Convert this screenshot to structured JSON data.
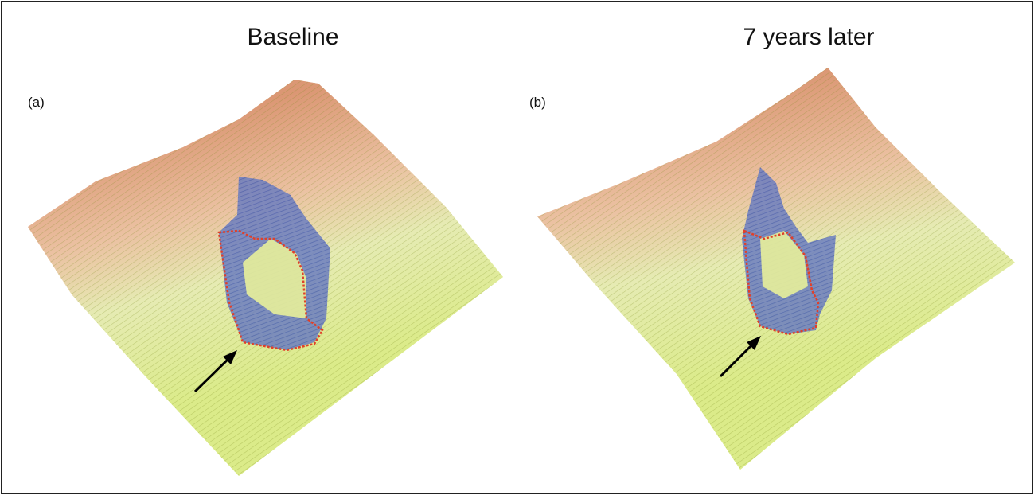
{
  "panels": [
    {
      "label": "(a)",
      "title": "Baseline"
    },
    {
      "label": "(b)",
      "title": "7 years later"
    }
  ]
}
